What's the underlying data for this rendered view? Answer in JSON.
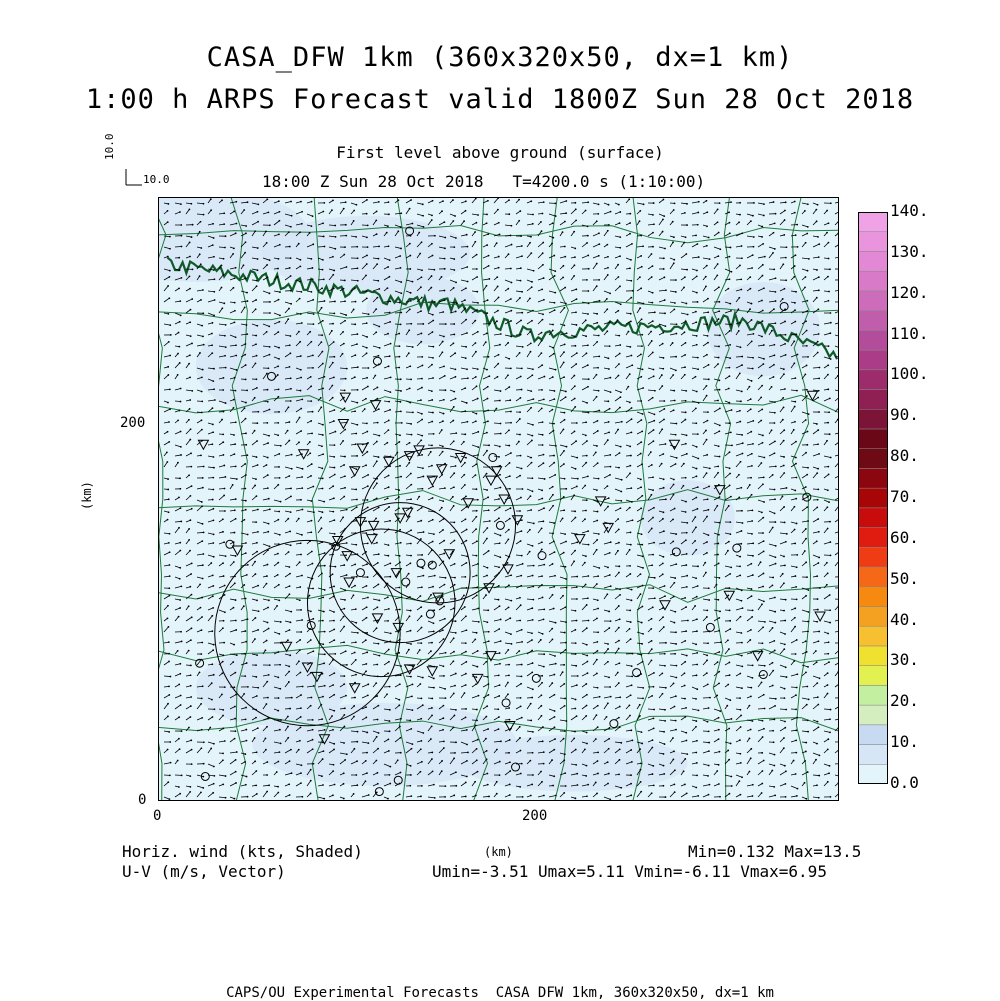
{
  "title": {
    "line1": "CASA_DFW 1km (360x320x50, dx=1 km)",
    "line2": "1:00 h ARPS Forecast valid 1800Z Sun 28 Oct 2018"
  },
  "subtitle": {
    "level": "First level above ground (surface)",
    "time": "18:00 Z Sun 28 Oct 2018   T=4200.0 s (1:10:00)"
  },
  "reference_vector": {
    "u_label": "10.0",
    "v_label": "10.0"
  },
  "footer": {
    "left1": "Horiz. wind (kts, Shaded)",
    "left2": "U-V (m/s, Vector)",
    "right1": "Min=0.132 Max=13.5",
    "right2": "Umin=-3.51 Umax=5.11 Vmin=-6.11 Vmax=6.95"
  },
  "credit": "CAPS/OU Experimental Forecasts  CASA DFW 1km, 360x320x50, dx=1 km",
  "chart_data": {
    "type": "heatmap",
    "field": "Horiz. wind (kts, Shaded)",
    "vector_field": "U-V (m/s, Vector)",
    "xlabel": "(km)",
    "ylabel": "(km)",
    "xlim": [
      0,
      360
    ],
    "ylim": [
      0,
      320
    ],
    "x_ticks": [
      0,
      200
    ],
    "y_ticks": [
      0,
      200
    ],
    "x_tick_labels": [
      "0",
      "200"
    ],
    "y_tick_labels": [
      "0",
      "200"
    ],
    "stats": {
      "min": 0.132,
      "max": 13.5,
      "umin": -3.51,
      "umax": 5.11,
      "vmin": -6.11,
      "vmax": 6.95
    },
    "colorbar": {
      "ticks": [
        "0.0",
        "10.",
        "20.",
        "30.",
        "40.",
        "50.",
        "60.",
        "70.",
        "80.",
        "90.",
        "100.",
        "110.",
        "120.",
        "130.",
        "140."
      ],
      "colors": [
        "#e4f4fb",
        "#d6e6f7",
        "#c8daf2",
        "#d4eec0",
        "#c2f0a0",
        "#e2f050",
        "#f0e030",
        "#f6c030",
        "#f4a020",
        "#f68a10",
        "#f46818",
        "#f03c14",
        "#e01c10",
        "#c80c0c",
        "#a80606",
        "#8c0610",
        "#6e0a14",
        "#6a0818",
        "#7c1438",
        "#8e2054",
        "#9c2c6c",
        "#aa3c88",
        "#b44c9c",
        "#c05eac",
        "#cc6cba",
        "#d87ac8",
        "#e288d4",
        "#ea94de",
        "#f0a2e6"
      ]
    },
    "radar_circles_km": [
      {
        "cx": 79,
        "cy": 89,
        "r": 49
      },
      {
        "cx": 118,
        "cy": 105,
        "r": 39
      },
      {
        "cx": 128,
        "cy": 121,
        "r": 37
      },
      {
        "cx": 148,
        "cy": 146,
        "r": 41
      }
    ]
  }
}
